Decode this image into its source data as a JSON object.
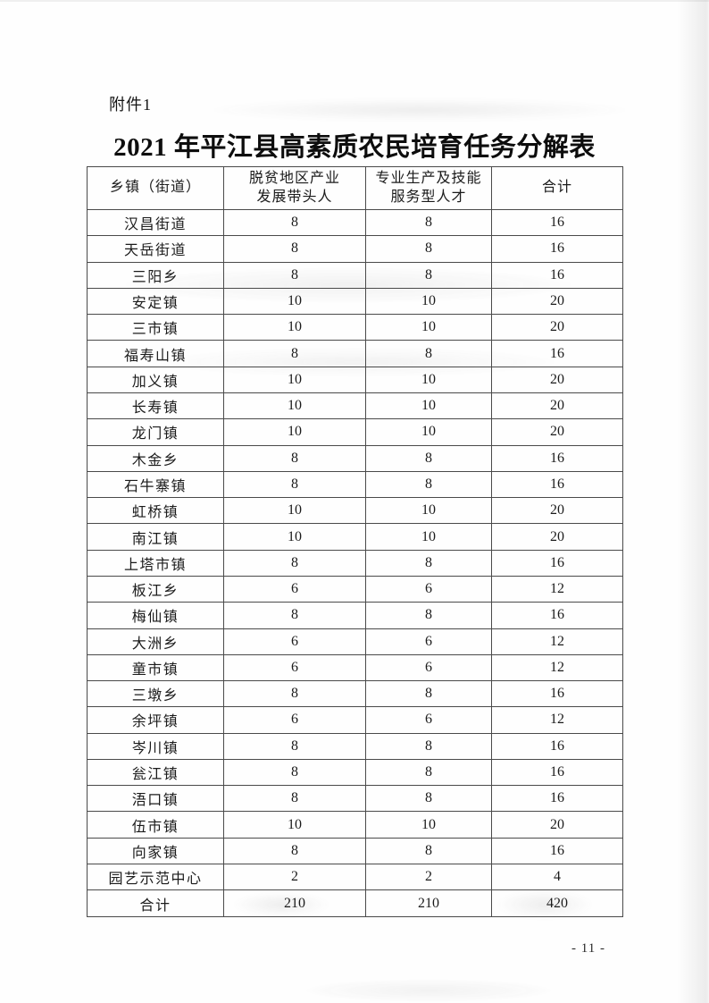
{
  "page": {
    "attachment_label": "附件1",
    "title": "2021 年平江县高素质农民培育任务分解表",
    "page_number": "- 11 -"
  },
  "table": {
    "columns": [
      "乡镇（街道）",
      "脱贫地区产业\n发展带头人",
      "专业生产及技能\n服务型人才",
      "合计"
    ],
    "rows": [
      [
        "汉昌街道",
        8,
        8,
        16
      ],
      [
        "天岳街道",
        8,
        8,
        16
      ],
      [
        "三阳乡",
        8,
        8,
        16
      ],
      [
        "安定镇",
        10,
        10,
        20
      ],
      [
        "三市镇",
        10,
        10,
        20
      ],
      [
        "福寿山镇",
        8,
        8,
        16
      ],
      [
        "加义镇",
        10,
        10,
        20
      ],
      [
        "长寿镇",
        10,
        10,
        20
      ],
      [
        "龙门镇",
        10,
        10,
        20
      ],
      [
        "木金乡",
        8,
        8,
        16
      ],
      [
        "石牛寨镇",
        8,
        8,
        16
      ],
      [
        "虹桥镇",
        10,
        10,
        20
      ],
      [
        "南江镇",
        10,
        10,
        20
      ],
      [
        "上塔市镇",
        8,
        8,
        16
      ],
      [
        "板江乡",
        6,
        6,
        12
      ],
      [
        "梅仙镇",
        8,
        8,
        16
      ],
      [
        "大洲乡",
        6,
        6,
        12
      ],
      [
        "童市镇",
        6,
        6,
        12
      ],
      [
        "三墩乡",
        8,
        8,
        16
      ],
      [
        "余坪镇",
        6,
        6,
        12
      ],
      [
        "岑川镇",
        8,
        8,
        16
      ],
      [
        "瓮江镇",
        8,
        8,
        16
      ],
      [
        "浯口镇",
        8,
        8,
        16
      ],
      [
        "伍市镇",
        10,
        10,
        20
      ],
      [
        "向家镇",
        8,
        8,
        16
      ],
      [
        "园艺示范中心",
        2,
        2,
        4
      ]
    ],
    "total_row": [
      "合计",
      210,
      210,
      420
    ]
  }
}
